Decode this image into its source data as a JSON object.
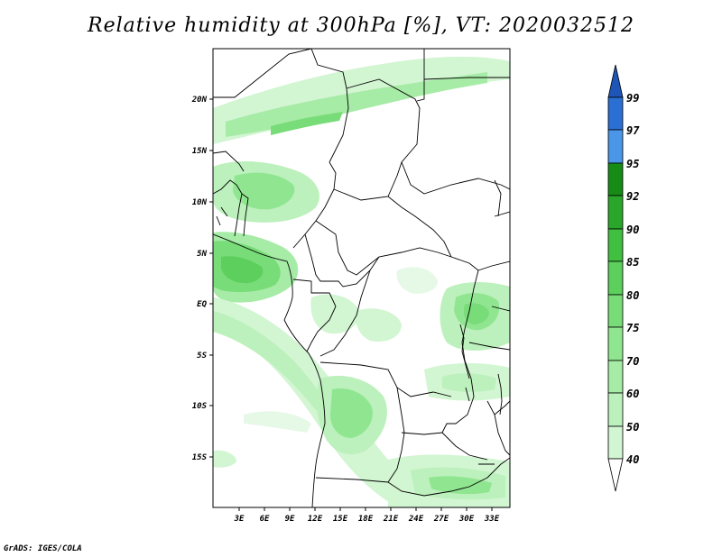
{
  "title": "Relative humidity at 300hPa [%], VT: 2020032512",
  "credit": "GrADS: IGES/COLA",
  "map": {
    "lon_range": [
      0,
      34
    ],
    "lat_range": [
      -20,
      25
    ],
    "lon_ticks": [
      "3E",
      "6E",
      "9E",
      "12E",
      "15E",
      "18E",
      "21E",
      "24E",
      "27E",
      "30E",
      "33E"
    ],
    "lat_ticks": [
      "20N",
      "15N",
      "10N",
      "5N",
      "EQ",
      "5S",
      "10S",
      "15S"
    ]
  },
  "colorbar": {
    "levels": [
      "40",
      "50",
      "60",
      "70",
      "75",
      "80",
      "85",
      "90",
      "92",
      "95",
      "97",
      "99"
    ],
    "colors": {
      "c40": "#e6f8e6",
      "c50": "#d2f5d2",
      "c60": "#bcf0bc",
      "c70": "#a6eba6",
      "c75": "#90e590",
      "c80": "#78dc78",
      "c85": "#5ccf5c",
      "c90": "#40bf40",
      "c92": "#2aa62a",
      "c95": "#168c16",
      "c97": "#4a96e8",
      "c99": "#2a70d4",
      "top": "#1e56b8"
    }
  }
}
